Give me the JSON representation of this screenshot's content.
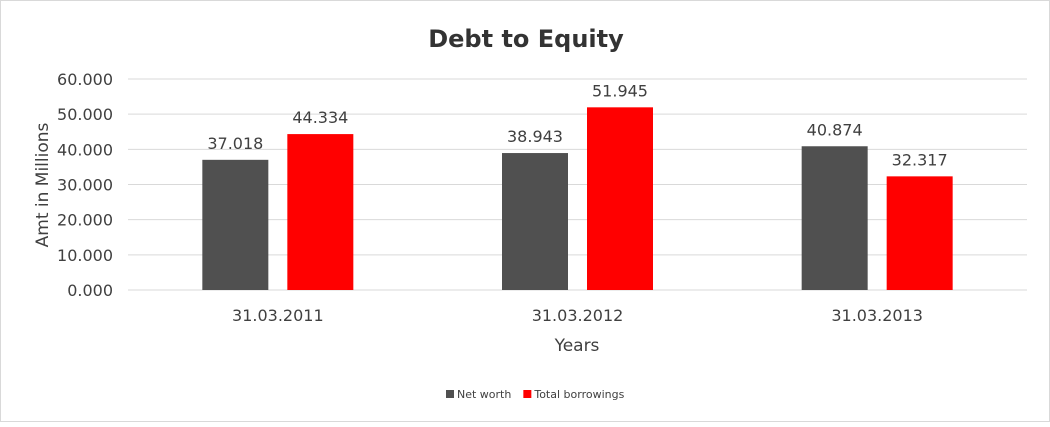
{
  "chart_data": {
    "type": "bar",
    "title": "Debt to Equity",
    "xlabel": "Years",
    "ylabel": "Amt in Millions",
    "categories": [
      "31.03.2011",
      "31.03.2012",
      "31.03.2013"
    ],
    "series": [
      {
        "name": "Net worth",
        "values": [
          37.018,
          38.943,
          40.874
        ],
        "labels": [
          "37.018",
          "38.943",
          "40.874"
        ],
        "color": "#505050"
      },
      {
        "name": "Total borrowings",
        "values": [
          44.334,
          51.945,
          32.317
        ],
        "labels": [
          "44.334",
          "51.945",
          "32.317"
        ],
        "color": "#ff0000"
      }
    ],
    "ylim": [
      0,
      60
    ],
    "yticks": [
      "0.000",
      "10.000",
      "20.000",
      "30.000",
      "40.000",
      "50.000",
      "60.000"
    ],
    "grid": true,
    "legend": "bottom"
  }
}
